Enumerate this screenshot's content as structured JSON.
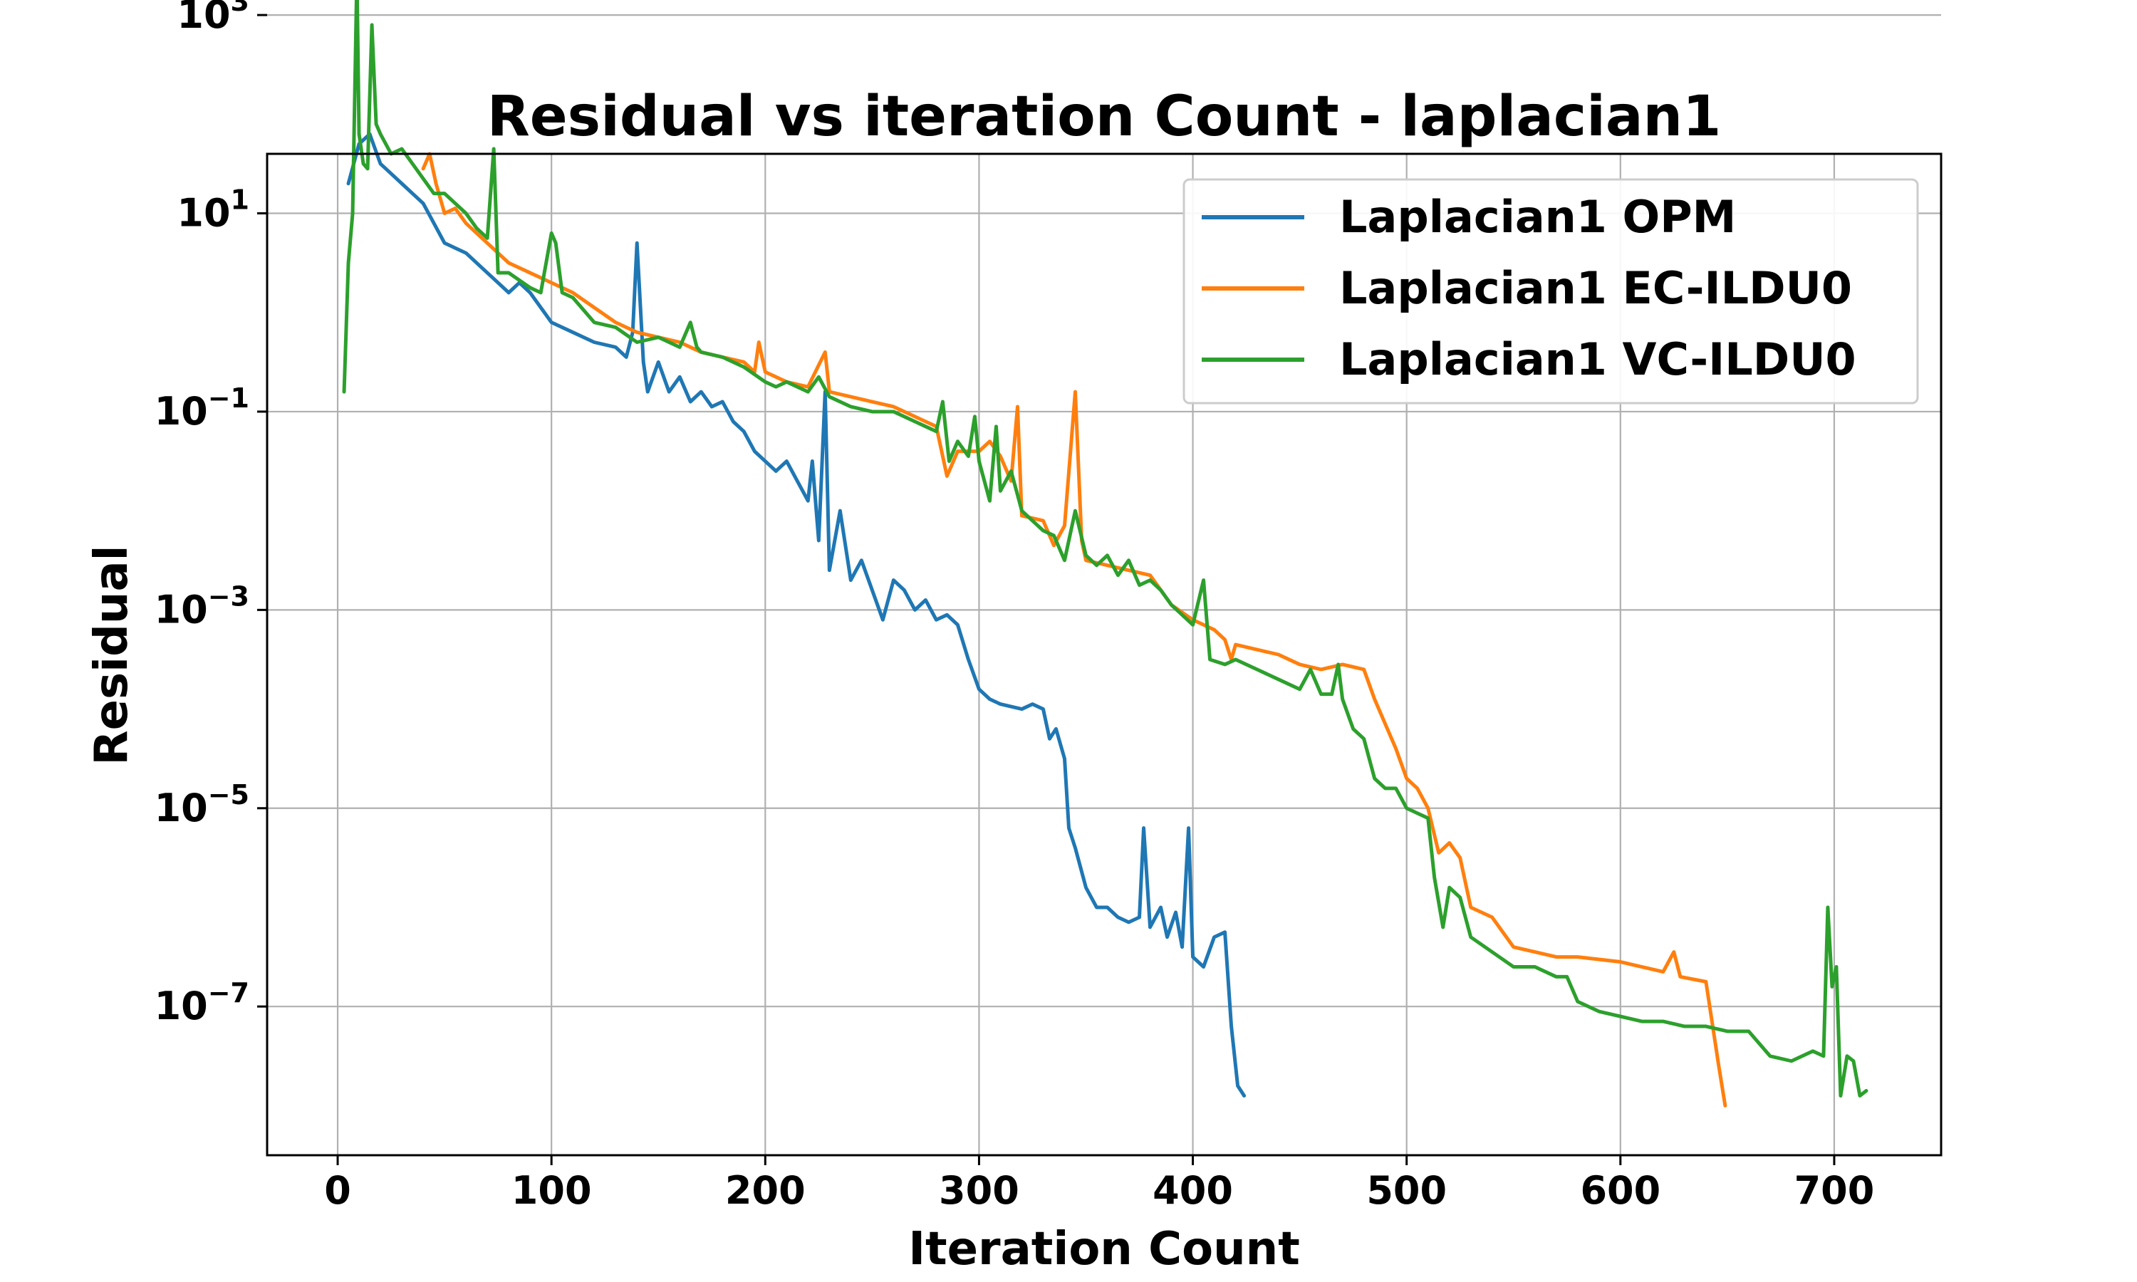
{
  "chart_data": {
    "type": "line",
    "title": "Residual vs iteration Count - laplacian1",
    "xlabel": "Iteration Count",
    "ylabel": "Residual",
    "xscale": "linear",
    "yscale": "log",
    "xlim": [
      -33,
      750
    ],
    "ylim_log10": [
      -8.5,
      1.6
    ],
    "xticks": [
      0,
      100,
      200,
      300,
      400,
      500,
      600,
      700
    ],
    "xtick_labels": [
      "0",
      "100",
      "200",
      "300",
      "400",
      "500",
      "600",
      "700"
    ],
    "yticks_log10": [
      -7,
      -5,
      -3,
      -1,
      1,
      3
    ],
    "ytick_bases": [
      "10",
      "10",
      "10",
      "10",
      "10",
      "10"
    ],
    "ytick_exponents": [
      "−7",
      "−5",
      "−3",
      "−1",
      "1",
      "3"
    ],
    "grid": true,
    "legend_position": "upper-right",
    "series": [
      {
        "name": "Laplacian1 OPM",
        "color": "#1f77b4",
        "points": [
          [
            5,
            1.3
          ],
          [
            10,
            1.7
          ],
          [
            15,
            1.8
          ],
          [
            20,
            1.5
          ],
          [
            25,
            1.4
          ],
          [
            30,
            1.3
          ],
          [
            35,
            1.2
          ],
          [
            40,
            1.1
          ],
          [
            45,
            0.9
          ],
          [
            50,
            0.7
          ],
          [
            60,
            0.6
          ],
          [
            70,
            0.4
          ],
          [
            75,
            0.3
          ],
          [
            80,
            0.2
          ],
          [
            85,
            0.3
          ],
          [
            90,
            0.2
          ],
          [
            100,
            -0.1
          ],
          [
            110,
            -0.2
          ],
          [
            120,
            -0.3
          ],
          [
            130,
            -0.35
          ],
          [
            135,
            -0.45
          ],
          [
            138,
            -0.2
          ],
          [
            140,
            0.7
          ],
          [
            143,
            -0.5
          ],
          [
            145,
            -0.8
          ],
          [
            150,
            -0.5
          ],
          [
            155,
            -0.8
          ],
          [
            160,
            -0.65
          ],
          [
            165,
            -0.9
          ],
          [
            170,
            -0.8
          ],
          [
            175,
            -0.95
          ],
          [
            180,
            -0.9
          ],
          [
            185,
            -1.1
          ],
          [
            190,
            -1.2
          ],
          [
            195,
            -1.4
          ],
          [
            200,
            -1.5
          ],
          [
            205,
            -1.6
          ],
          [
            210,
            -1.5
          ],
          [
            215,
            -1.7
          ],
          [
            220,
            -1.9
          ],
          [
            222,
            -1.5
          ],
          [
            225,
            -2.3
          ],
          [
            228,
            -0.8
          ],
          [
            230,
            -2.6
          ],
          [
            235,
            -2.0
          ],
          [
            240,
            -2.7
          ],
          [
            245,
            -2.5
          ],
          [
            250,
            -2.8
          ],
          [
            255,
            -3.1
          ],
          [
            260,
            -2.7
          ],
          [
            265,
            -2.8
          ],
          [
            270,
            -3.0
          ],
          [
            275,
            -2.9
          ],
          [
            280,
            -3.1
          ],
          [
            285,
            -3.05
          ],
          [
            290,
            -3.15
          ],
          [
            295,
            -3.5
          ],
          [
            300,
            -3.8
          ],
          [
            305,
            -3.9
          ],
          [
            310,
            -3.95
          ],
          [
            320,
            -4.0
          ],
          [
            325,
            -3.95
          ],
          [
            330,
            -4.0
          ],
          [
            333,
            -4.3
          ],
          [
            336,
            -4.2
          ],
          [
            340,
            -4.5
          ],
          [
            342,
            -5.2
          ],
          [
            345,
            -5.4
          ],
          [
            350,
            -5.8
          ],
          [
            355,
            -6.0
          ],
          [
            360,
            -6.0
          ],
          [
            365,
            -6.1
          ],
          [
            370,
            -6.15
          ],
          [
            375,
            -6.1
          ],
          [
            377,
            -5.2
          ],
          [
            380,
            -6.2
          ],
          [
            385,
            -6.0
          ],
          [
            388,
            -6.3
          ],
          [
            392,
            -6.05
          ],
          [
            395,
            -6.4
          ],
          [
            398,
            -5.2
          ],
          [
            400,
            -6.5
          ],
          [
            405,
            -6.6
          ],
          [
            410,
            -6.3
          ],
          [
            415,
            -6.25
          ],
          [
            418,
            -7.2
          ],
          [
            421,
            -7.8
          ],
          [
            424,
            -7.9
          ]
        ]
      },
      {
        "name": "Laplacian1 EC-ILDU0",
        "color": "#ff7f0e",
        "points": [
          [
            40,
            1.45
          ],
          [
            43,
            1.6
          ],
          [
            46,
            1.3
          ],
          [
            50,
            1.0
          ],
          [
            55,
            1.05
          ],
          [
            60,
            0.9
          ],
          [
            70,
            0.7
          ],
          [
            80,
            0.5
          ],
          [
            90,
            0.4
          ],
          [
            100,
            0.3
          ],
          [
            110,
            0.2
          ],
          [
            120,
            0.05
          ],
          [
            130,
            -0.1
          ],
          [
            140,
            -0.2
          ],
          [
            150,
            -0.25
          ],
          [
            160,
            -0.3
          ],
          [
            170,
            -0.4
          ],
          [
            180,
            -0.45
          ],
          [
            190,
            -0.5
          ],
          [
            195,
            -0.6
          ],
          [
            197,
            -0.3
          ],
          [
            200,
            -0.6
          ],
          [
            210,
            -0.7
          ],
          [
            220,
            -0.75
          ],
          [
            228,
            -0.4
          ],
          [
            230,
            -0.8
          ],
          [
            240,
            -0.85
          ],
          [
            250,
            -0.9
          ],
          [
            260,
            -0.95
          ],
          [
            270,
            -1.05
          ],
          [
            275,
            -1.1
          ],
          [
            280,
            -1.15
          ],
          [
            285,
            -1.65
          ],
          [
            290,
            -1.4
          ],
          [
            300,
            -1.4
          ],
          [
            305,
            -1.3
          ],
          [
            310,
            -1.45
          ],
          [
            315,
            -1.7
          ],
          [
            318,
            -0.95
          ],
          [
            320,
            -2.05
          ],
          [
            330,
            -2.1
          ],
          [
            335,
            -2.35
          ],
          [
            340,
            -2.15
          ],
          [
            345,
            -0.8
          ],
          [
            348,
            -2.3
          ],
          [
            350,
            -2.5
          ],
          [
            360,
            -2.55
          ],
          [
            370,
            -2.6
          ],
          [
            380,
            -2.65
          ],
          [
            390,
            -2.95
          ],
          [
            400,
            -3.1
          ],
          [
            410,
            -3.2
          ],
          [
            415,
            -3.3
          ],
          [
            418,
            -3.5
          ],
          [
            420,
            -3.35
          ],
          [
            430,
            -3.4
          ],
          [
            440,
            -3.45
          ],
          [
            450,
            -3.55
          ],
          [
            460,
            -3.6
          ],
          [
            470,
            -3.55
          ],
          [
            480,
            -3.6
          ],
          [
            485,
            -3.9
          ],
          [
            490,
            -4.15
          ],
          [
            495,
            -4.4
          ],
          [
            500,
            -4.7
          ],
          [
            505,
            -4.8
          ],
          [
            510,
            -5.0
          ],
          [
            515,
            -5.45
          ],
          [
            520,
            -5.35
          ],
          [
            525,
            -5.5
          ],
          [
            530,
            -6.0
          ],
          [
            540,
            -6.1
          ],
          [
            545,
            -6.25
          ],
          [
            550,
            -6.4
          ],
          [
            560,
            -6.45
          ],
          [
            570,
            -6.5
          ],
          [
            580,
            -6.5
          ],
          [
            600,
            -6.55
          ],
          [
            620,
            -6.65
          ],
          [
            625,
            -6.45
          ],
          [
            628,
            -6.7
          ],
          [
            640,
            -6.75
          ],
          [
            646,
            -7.6
          ],
          [
            649,
            -8.0
          ]
        ]
      },
      {
        "name": "Laplacian1 VC-ILDU0",
        "color": "#2ca02c",
        "points": [
          [
            3,
            -0.8
          ],
          [
            5,
            0.5
          ],
          [
            7,
            1.0
          ],
          [
            9,
            3.4
          ],
          [
            10,
            1.8
          ],
          [
            12,
            1.5
          ],
          [
            14,
            1.45
          ],
          [
            16,
            2.9
          ],
          [
            18,
            1.9
          ],
          [
            20,
            1.8
          ],
          [
            25,
            1.6
          ],
          [
            30,
            1.65
          ],
          [
            35,
            1.5
          ],
          [
            40,
            1.35
          ],
          [
            45,
            1.2
          ],
          [
            50,
            1.2
          ],
          [
            55,
            1.1
          ],
          [
            60,
            1.0
          ],
          [
            65,
            0.85
          ],
          [
            70,
            0.75
          ],
          [
            73,
            1.65
          ],
          [
            75,
            0.4
          ],
          [
            80,
            0.4
          ],
          [
            90,
            0.25
          ],
          [
            95,
            0.2
          ],
          [
            100,
            0.8
          ],
          [
            102,
            0.7
          ],
          [
            105,
            0.2
          ],
          [
            110,
            0.15
          ],
          [
            120,
            -0.1
          ],
          [
            130,
            -0.15
          ],
          [
            140,
            -0.3
          ],
          [
            150,
            -0.25
          ],
          [
            160,
            -0.35
          ],
          [
            165,
            -0.1
          ],
          [
            168,
            -0.35
          ],
          [
            170,
            -0.4
          ],
          [
            180,
            -0.45
          ],
          [
            190,
            -0.55
          ],
          [
            200,
            -0.7
          ],
          [
            205,
            -0.75
          ],
          [
            210,
            -0.7
          ],
          [
            220,
            -0.8
          ],
          [
            225,
            -0.65
          ],
          [
            230,
            -0.85
          ],
          [
            240,
            -0.95
          ],
          [
            250,
            -1.0
          ],
          [
            260,
            -1.0
          ],
          [
            270,
            -1.1
          ],
          [
            275,
            -1.15
          ],
          [
            280,
            -1.2
          ],
          [
            283,
            -0.9
          ],
          [
            286,
            -1.5
          ],
          [
            290,
            -1.3
          ],
          [
            295,
            -1.45
          ],
          [
            298,
            -1.05
          ],
          [
            300,
            -1.5
          ],
          [
            305,
            -1.9
          ],
          [
            308,
            -1.15
          ],
          [
            310,
            -1.8
          ],
          [
            315,
            -1.6
          ],
          [
            320,
            -2.0
          ],
          [
            330,
            -2.2
          ],
          [
            335,
            -2.25
          ],
          [
            340,
            -2.5
          ],
          [
            345,
            -2.0
          ],
          [
            350,
            -2.45
          ],
          [
            355,
            -2.55
          ],
          [
            360,
            -2.45
          ],
          [
            365,
            -2.65
          ],
          [
            370,
            -2.5
          ],
          [
            375,
            -2.75
          ],
          [
            380,
            -2.7
          ],
          [
            385,
            -2.8
          ],
          [
            390,
            -2.95
          ],
          [
            395,
            -3.05
          ],
          [
            400,
            -3.15
          ],
          [
            405,
            -2.7
          ],
          [
            408,
            -3.5
          ],
          [
            415,
            -3.55
          ],
          [
            420,
            -3.5
          ],
          [
            430,
            -3.6
          ],
          [
            440,
            -3.7
          ],
          [
            450,
            -3.8
          ],
          [
            455,
            -3.6
          ],
          [
            460,
            -3.85
          ],
          [
            465,
            -3.85
          ],
          [
            468,
            -3.55
          ],
          [
            470,
            -3.9
          ],
          [
            475,
            -4.2
          ],
          [
            480,
            -4.3
          ],
          [
            485,
            -4.7
          ],
          [
            490,
            -4.8
          ],
          [
            495,
            -4.8
          ],
          [
            500,
            -5.0
          ],
          [
            505,
            -5.05
          ],
          [
            510,
            -5.1
          ],
          [
            513,
            -5.7
          ],
          [
            517,
            -6.2
          ],
          [
            520,
            -5.8
          ],
          [
            525,
            -5.9
          ],
          [
            530,
            -6.3
          ],
          [
            540,
            -6.45
          ],
          [
            550,
            -6.6
          ],
          [
            560,
            -6.6
          ],
          [
            570,
            -6.7
          ],
          [
            575,
            -6.7
          ],
          [
            580,
            -6.95
          ],
          [
            590,
            -7.05
          ],
          [
            600,
            -7.1
          ],
          [
            610,
            -7.15
          ],
          [
            620,
            -7.15
          ],
          [
            630,
            -7.2
          ],
          [
            640,
            -7.2
          ],
          [
            650,
            -7.25
          ],
          [
            660,
            -7.25
          ],
          [
            670,
            -7.5
          ],
          [
            680,
            -7.55
          ],
          [
            690,
            -7.45
          ],
          [
            695,
            -7.5
          ],
          [
            697,
            -6.0
          ],
          [
            699,
            -6.8
          ],
          [
            701,
            -6.6
          ],
          [
            703,
            -7.9
          ],
          [
            706,
            -7.5
          ],
          [
            709,
            -7.55
          ],
          [
            712,
            -7.9
          ],
          [
            715,
            -7.85
          ]
        ]
      }
    ]
  }
}
